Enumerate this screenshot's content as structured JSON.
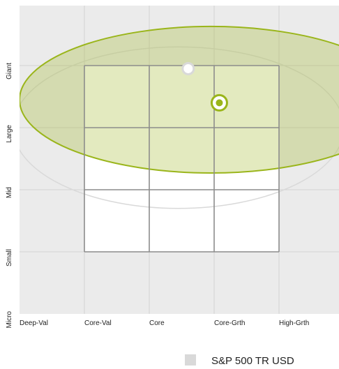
{
  "chart_data": {
    "type": "scatter",
    "subtype": "style-box",
    "x_categories": [
      "Deep-Val",
      "Core-Val",
      "Core",
      "Core-Grth",
      "High-Grth"
    ],
    "y_categories": [
      "Micro",
      "Small",
      "Mid",
      "Large",
      "Giant"
    ],
    "xlim": [
      0,
      4
    ],
    "ylim": [
      0,
      4
    ],
    "grid": true,
    "legend_position": "bottom-right",
    "style_box": {
      "x": [
        1,
        4
      ],
      "y": [
        1,
        4
      ]
    },
    "series": [
      {
        "name": "S&P 500 TR USD",
        "role": "benchmark",
        "color": "#d9d9d9",
        "centroid": {
          "x": 2.6,
          "y": 3.95
        },
        "ellipse": {
          "cx": 2.45,
          "cy": 3.0,
          "rx": 2.55,
          "ry": 1.3
        }
      },
      {
        "name": "",
        "role": "fund",
        "color": "#9ab51a",
        "centroid": {
          "x": 3.08,
          "y": 3.4
        },
        "ellipse": {
          "cx": 2.95,
          "cy": 3.45,
          "rx": 2.95,
          "ry": 1.18
        }
      }
    ]
  },
  "colors": {
    "background": "#ebebeb",
    "grid": "#d3d3d3",
    "box": "#8c8c8c",
    "fund": "#9ab51a"
  }
}
